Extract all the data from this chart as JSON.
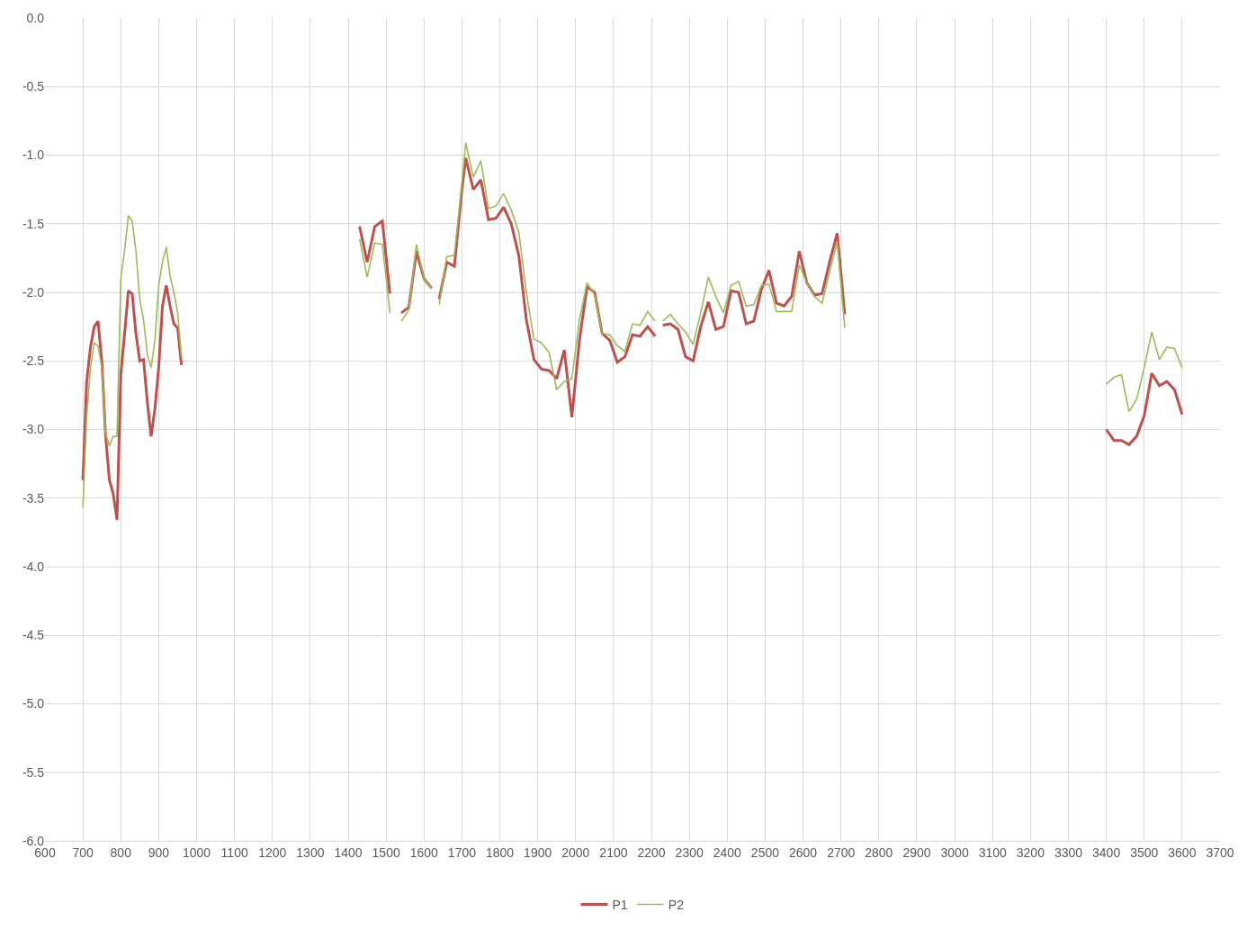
{
  "chart_data": {
    "type": "line",
    "x": [
      700,
      710,
      720,
      730,
      740,
      750,
      760,
      770,
      780,
      790,
      800,
      810,
      820,
      830,
      840,
      850,
      860,
      870,
      880,
      890,
      900,
      910,
      920,
      930,
      940,
      950,
      960,
      1000,
      1430,
      1450,
      1470,
      1490,
      1510,
      1520,
      1540,
      1560,
      1580,
      1600,
      1620,
      1630,
      1640,
      1660,
      1680,
      1700,
      1710,
      1730,
      1750,
      1770,
      1790,
      1810,
      1830,
      1850,
      1870,
      1890,
      1910,
      1930,
      1950,
      1970,
      1990,
      2010,
      2030,
      2050,
      2070,
      2090,
      2110,
      2130,
      2150,
      2170,
      2190,
      2210,
      2220,
      2230,
      2250,
      2270,
      2290,
      2310,
      2330,
      2350,
      2370,
      2390,
      2410,
      2430,
      2450,
      2470,
      2490,
      2510,
      2530,
      2550,
      2570,
      2590,
      2610,
      2630,
      2650,
      2670,
      2690,
      2710,
      3000,
      3400,
      3420,
      3440,
      3460,
      3480,
      3500,
      3520,
      3540,
      3560,
      3580,
      3600
    ],
    "series": [
      {
        "name": "P1",
        "color": "#c0504d",
        "values": [
          -3.37,
          -2.65,
          -2.4,
          -2.25,
          -2.21,
          -2.5,
          -3.05,
          -3.37,
          -3.47,
          -3.66,
          -2.6,
          -2.3,
          -1.99,
          -2.01,
          -2.3,
          -2.5,
          -2.49,
          -2.8,
          -3.05,
          -2.85,
          -2.55,
          -2.1,
          -1.95,
          -2.1,
          -2.23,
          -2.26,
          -2.53,
          null,
          -1.52,
          -1.78,
          -1.52,
          -1.48,
          -2.01,
          null,
          -2.15,
          -2.11,
          -1.7,
          -1.9,
          -1.97,
          null,
          -2.05,
          -1.78,
          -1.81,
          -1.25,
          -1.02,
          -1.25,
          -1.18,
          -1.47,
          -1.46,
          -1.38,
          -1.5,
          -1.73,
          -2.2,
          -2.49,
          -2.56,
          -2.57,
          -2.63,
          -2.42,
          -2.91,
          -2.35,
          -1.96,
          -2.0,
          -2.3,
          -2.35,
          -2.51,
          -2.47,
          -2.31,
          -2.32,
          -2.25,
          -2.32,
          null,
          -2.24,
          -2.23,
          -2.27,
          -2.47,
          -2.5,
          -2.25,
          -2.07,
          -2.27,
          -2.25,
          -1.99,
          -2.0,
          -2.23,
          -2.21,
          -1.98,
          -1.84,
          -2.08,
          -2.1,
          -2.03,
          -1.7,
          -1.93,
          -2.02,
          -2.01,
          -1.78,
          -1.57,
          -2.16,
          null,
          -3.0,
          -3.08,
          -3.08,
          -3.11,
          -3.05,
          -2.9,
          -2.59,
          -2.68,
          -2.65,
          -2.71,
          -2.89
        ]
      },
      {
        "name": "P2",
        "color": "#9bbb59",
        "values": [
          -3.57,
          -2.9,
          -2.55,
          -2.37,
          -2.39,
          -2.55,
          -3.03,
          -3.12,
          -3.05,
          -3.05,
          -1.9,
          -1.7,
          -1.44,
          -1.48,
          -1.7,
          -2.05,
          -2.2,
          -2.45,
          -2.55,
          -2.35,
          -1.95,
          -1.78,
          -1.67,
          -1.88,
          -2.0,
          -2.15,
          -2.47,
          null,
          -1.61,
          -1.89,
          -1.64,
          -1.65,
          -2.15,
          null,
          -2.21,
          -2.13,
          -1.65,
          -1.9,
          -1.97,
          null,
          -2.09,
          -1.74,
          -1.73,
          -1.2,
          -0.91,
          -1.16,
          -1.04,
          -1.39,
          -1.37,
          -1.28,
          -1.4,
          -1.56,
          -2.0,
          -2.34,
          -2.37,
          -2.44,
          -2.71,
          -2.65,
          -2.63,
          -2.2,
          -1.93,
          -2.02,
          -2.3,
          -2.31,
          -2.39,
          -2.43,
          -2.23,
          -2.24,
          -2.14,
          -2.21,
          null,
          -2.21,
          -2.16,
          -2.23,
          -2.29,
          -2.38,
          -2.15,
          -1.89,
          -2.03,
          -2.15,
          -1.95,
          -1.92,
          -2.1,
          -2.09,
          -1.95,
          -1.94,
          -2.14,
          -2.14,
          -2.14,
          -1.8,
          -1.93,
          -2.03,
          -2.08,
          -1.85,
          -1.63,
          -2.26,
          null,
          -2.67,
          -2.62,
          -2.6,
          -2.87,
          -2.78,
          -2.55,
          -2.29,
          -2.49,
          -2.4,
          -2.41,
          -2.55
        ]
      }
    ],
    "xlim": [
      600,
      3700
    ],
    "xticks": [
      600,
      700,
      800,
      900,
      1000,
      1100,
      1200,
      1300,
      1400,
      1500,
      1600,
      1700,
      1800,
      1900,
      2000,
      2100,
      2200,
      2300,
      2400,
      2500,
      2600,
      2700,
      2800,
      2900,
      3000,
      3100,
      3200,
      3300,
      3400,
      3500,
      3600,
      3700
    ],
    "ylim": [
      -6,
      0
    ],
    "yticks": [
      {
        "value": -6,
        "label": "-6.0"
      },
      {
        "value": -5.5,
        "label": "-5.5"
      },
      {
        "value": -5,
        "label": "-5.0"
      },
      {
        "value": -4.5,
        "label": "-4.5"
      },
      {
        "value": -4,
        "label": "-4.0"
      },
      {
        "value": -3.5,
        "label": "-3.5"
      },
      {
        "value": -3,
        "label": "-3.0"
      },
      {
        "value": -2.5,
        "label": "-2.5"
      },
      {
        "value": -2,
        "label": "-2.0"
      },
      {
        "value": -1.5,
        "label": "-1.5"
      },
      {
        "value": -1,
        "label": "-1.0"
      },
      {
        "value": -0.5,
        "label": "-0.5"
      },
      {
        "value": 0,
        "label": "0.0"
      }
    ],
    "grid": true,
    "legend": "bottom",
    "marker": "none",
    "line_style": "solid"
  }
}
